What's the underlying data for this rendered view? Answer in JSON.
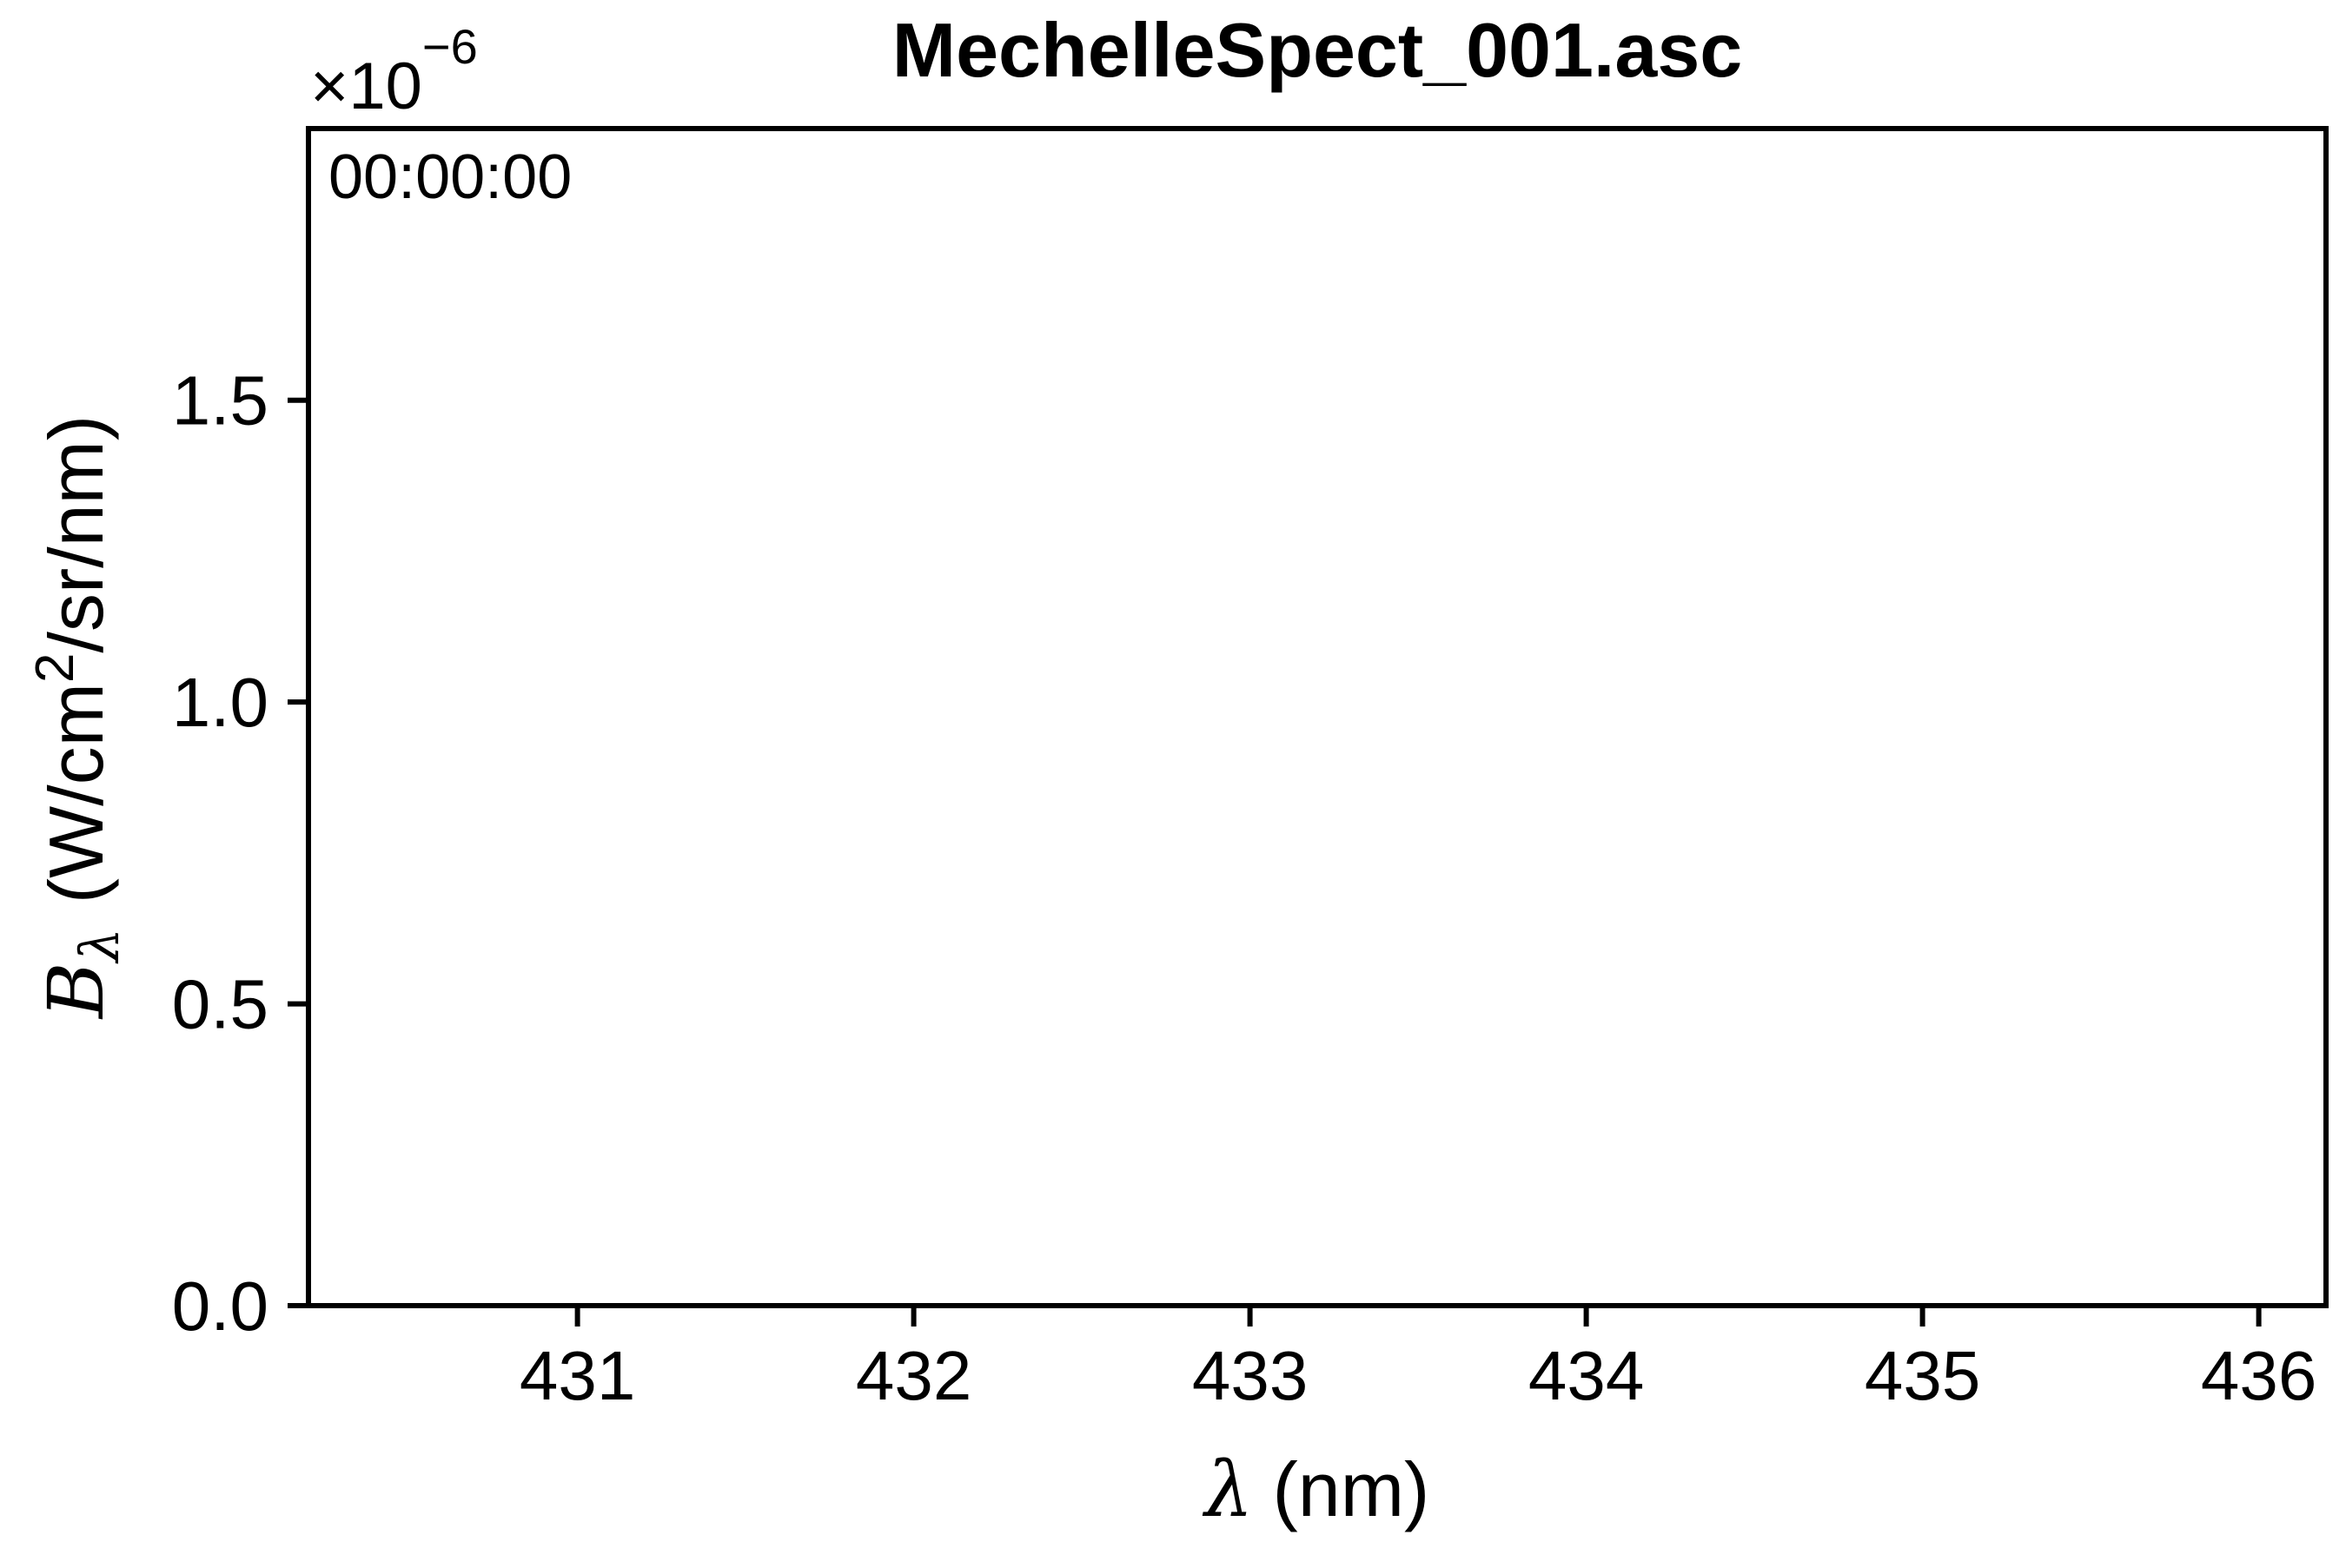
{
  "chart_data": {
    "type": "line",
    "title": "MechelleSpect_001.asc",
    "annotation": "00:00:00",
    "xlabel": "λ (nm)",
    "xlabel_parts": {
      "symbol": "λ",
      "unit": "(nm)"
    },
    "ylabel": "Bλ (W/cm²/sr/nm)",
    "ylabel_parts": {
      "symbol": "B",
      "subscript": "λ",
      "unit_before_sup": "(W/cm",
      "superscript": "2",
      "unit_after_sup": "/sr/nm)"
    },
    "y_offset_text": {
      "base": "×10",
      "exponent": "−6"
    },
    "xlim": [
      430.2,
      436.2
    ],
    "ylim": [
      0.0,
      1.95
    ],
    "x_ticks": [
      431,
      432,
      433,
      434,
      435,
      436
    ],
    "x_tick_labels": [
      "431",
      "432",
      "433",
      "434",
      "435",
      "436"
    ],
    "y_ticks": [
      0.0,
      0.5,
      1.0,
      1.5
    ],
    "y_tick_labels": [
      "0.0",
      "0.5",
      "1.0",
      "1.5"
    ],
    "grid": false,
    "series": []
  }
}
